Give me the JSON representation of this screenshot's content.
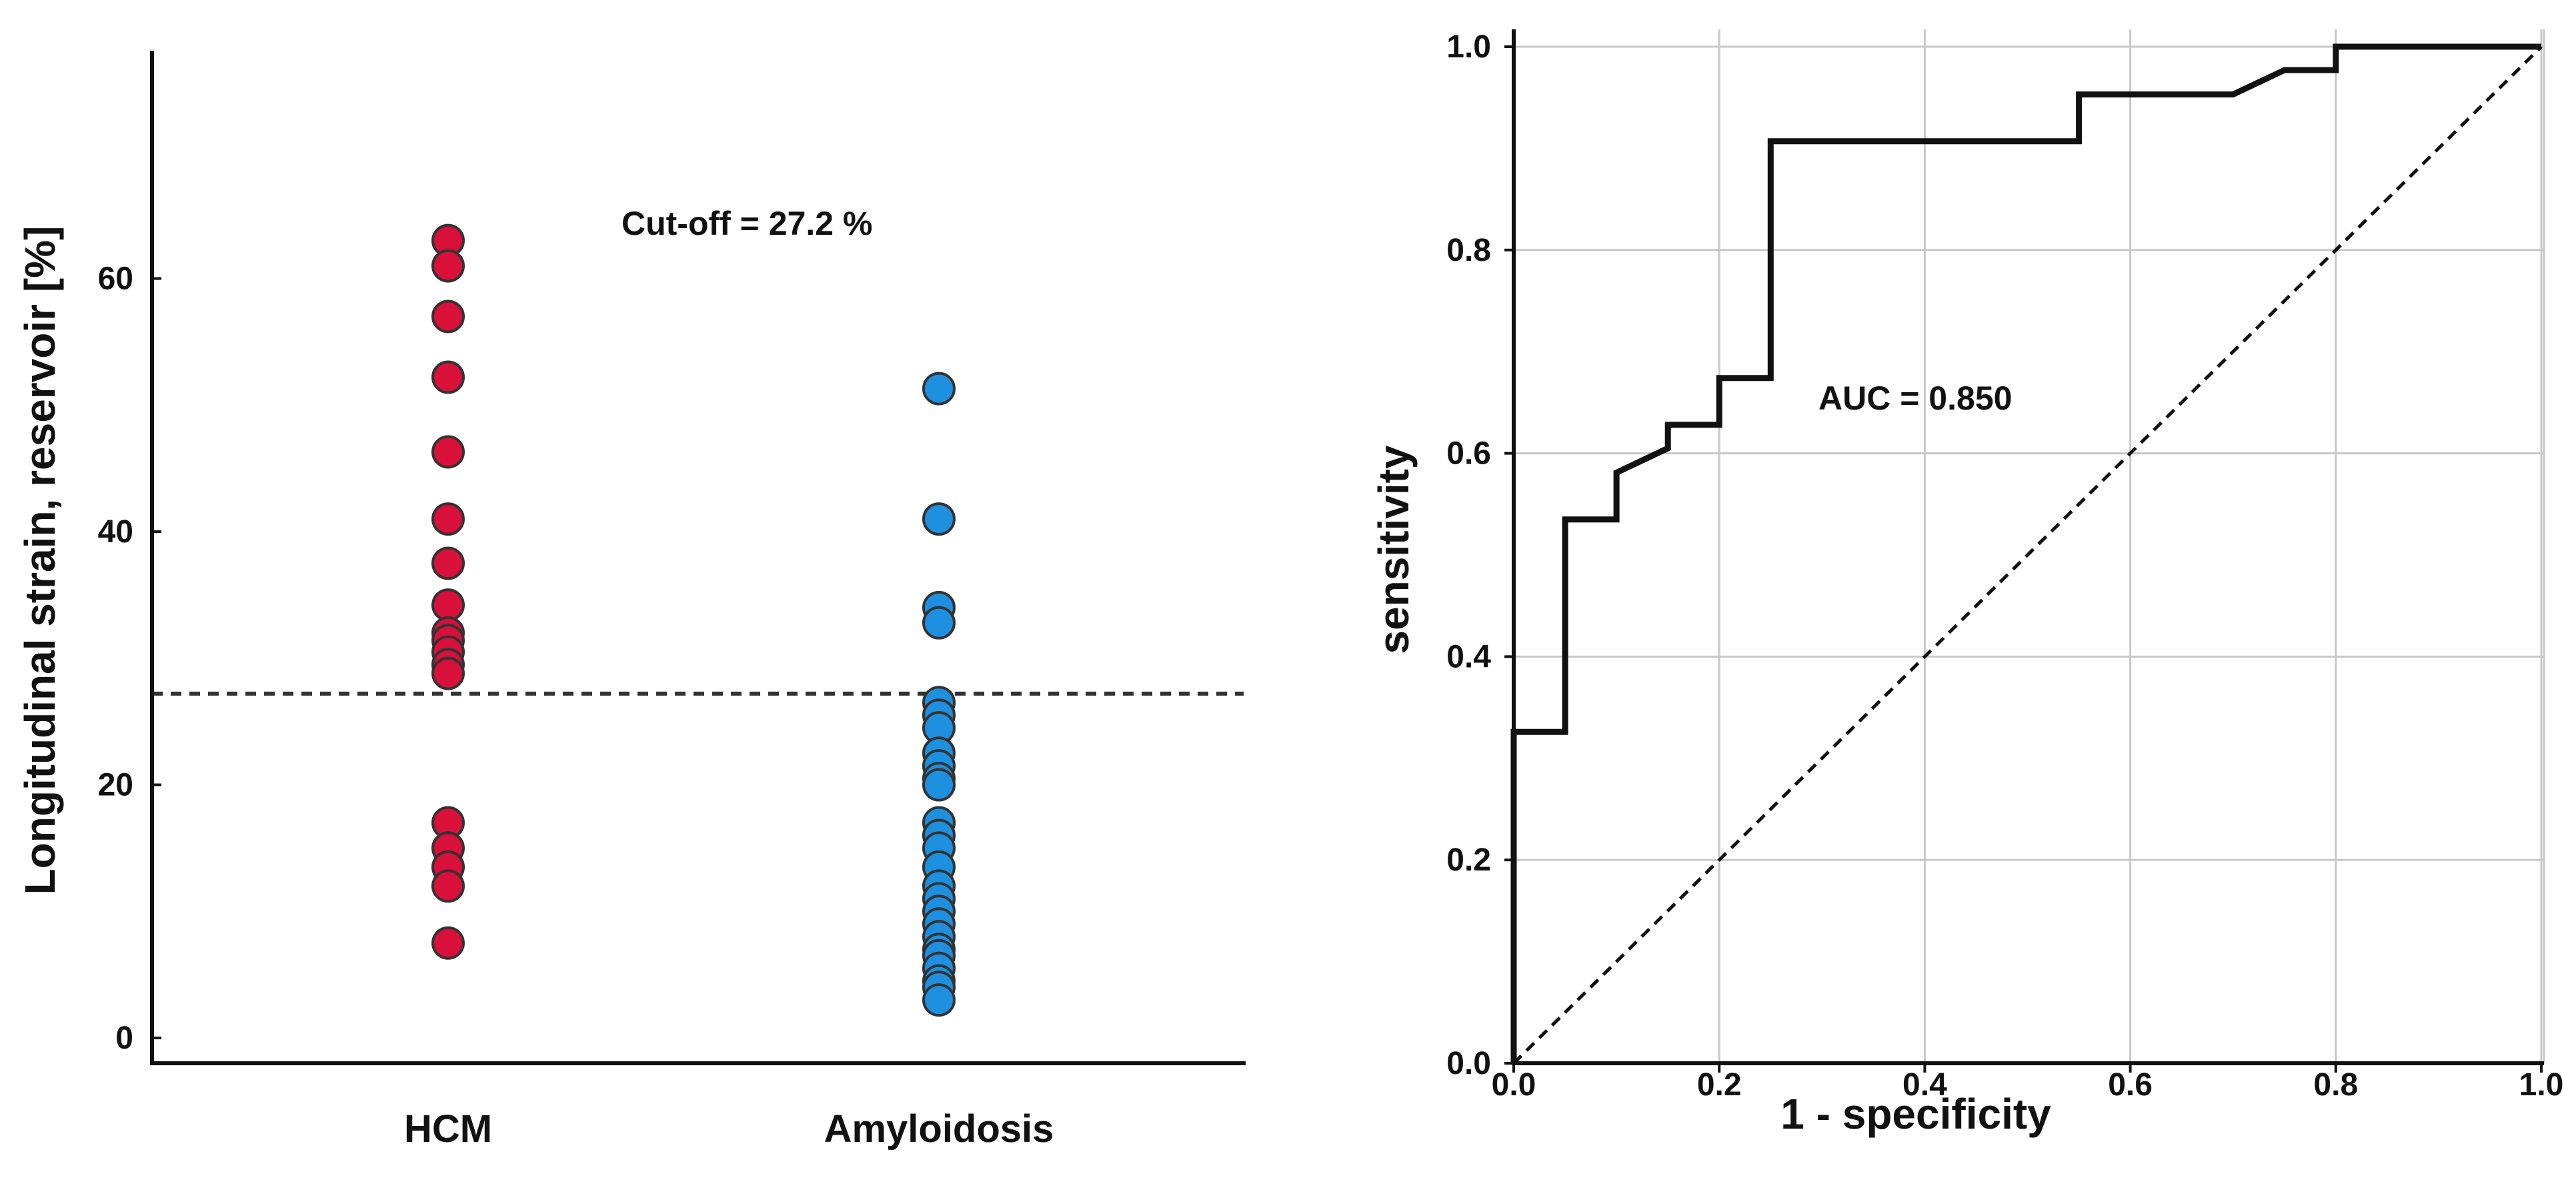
{
  "colors": {
    "hcm": "#D8103A",
    "amyloidosis": "#1E90E0",
    "marker_edge": "#333333",
    "grid": "#C8C8C8",
    "axis": "#111111"
  },
  "chart_data": [
    {
      "type": "scatter",
      "title": "",
      "xlabel": "",
      "ylabel": "Longitudinal strain, reservoir [%]",
      "categories": [
        "HCM",
        "Amyloidosis"
      ],
      "ylim": [
        -2,
        78
      ],
      "yticks": [
        "0",
        "20",
        "40",
        "60"
      ],
      "grid": false,
      "series": [
        {
          "name": "HCM",
          "category": "HCM",
          "values": [
            63.0,
            61.0,
            57.0,
            52.2,
            46.3,
            41.0,
            37.5,
            34.2,
            32.0,
            31.4,
            30.5,
            29.5,
            28.8,
            17.0,
            15.0,
            13.5,
            12.0,
            7.5
          ]
        },
        {
          "name": "Amyloidosis",
          "category": "Amyloidosis",
          "values": [
            51.3,
            41.0,
            34.0,
            32.8,
            26.5,
            25.5,
            24.5,
            22.5,
            21.5,
            20.5,
            20.0,
            17.0,
            16.0,
            15.0,
            13.5,
            12.0,
            11.0,
            10.0,
            9.0,
            8.0,
            7.0,
            6.5,
            5.5,
            4.5,
            4.0,
            3.0
          ]
        }
      ],
      "cutoff": {
        "value": 27.2,
        "label": "Cut-off = 27.2 %"
      }
    },
    {
      "type": "line",
      "title": "",
      "xlabel": "1 - specificity",
      "ylabel": "sensitivity",
      "xlim": [
        0.0,
        1.0
      ],
      "ylim": [
        0.0,
        1.0
      ],
      "xticks": [
        "0.0",
        "0.2",
        "0.4",
        "0.6",
        "0.8",
        "1.0"
      ],
      "yticks": [
        "0.0",
        "0.2",
        "0.4",
        "0.6",
        "0.8",
        "1.0"
      ],
      "grid": true,
      "series": [
        {
          "name": "ROC",
          "style": "solid",
          "x": [
            0.0,
            0.0,
            0.05,
            0.05,
            0.1,
            0.1,
            0.15,
            0.15,
            0.2,
            0.2,
            0.25,
            0.25,
            0.55,
            0.55,
            0.7,
            0.75,
            0.8,
            0.8,
            1.0
          ],
          "y": [
            0.0,
            0.326,
            0.326,
            0.535,
            0.535,
            0.581,
            0.605,
            0.628,
            0.628,
            0.674,
            0.674,
            0.907,
            0.907,
            0.953,
            0.953,
            0.977,
            0.977,
            1.0,
            1.0
          ]
        },
        {
          "name": "Reference",
          "style": "dashed",
          "x": [
            0.0,
            1.0
          ],
          "y": [
            0.0,
            1.0
          ]
        }
      ],
      "annotations": [
        {
          "text": "AUC = 0.850"
        }
      ]
    }
  ]
}
